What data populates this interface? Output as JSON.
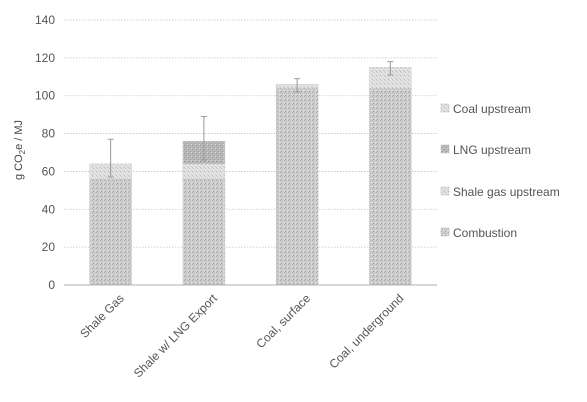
{
  "chart_data": {
    "type": "bar",
    "stacked": true,
    "categories": [
      "Shale Gas",
      "Shale w/ LNG Export",
      "Coal, surface",
      "Coal, underground"
    ],
    "ylabel_parts": [
      "g CO",
      "2",
      "e / MJ"
    ],
    "ylim": [
      0,
      140
    ],
    "yticks": [
      0,
      20,
      40,
      60,
      80,
      100,
      120,
      140
    ],
    "grid": true,
    "legend_position": "right",
    "series": [
      {
        "name": "Combustion",
        "color": "#c9c9c9",
        "values": [
          56,
          56,
          104,
          104
        ]
      },
      {
        "name": "Shale gas upstream",
        "color": "#d4d4d4",
        "values": [
          8,
          8,
          0,
          0
        ]
      },
      {
        "name": "LNG upstream",
        "color": "#bdbdbd",
        "values": [
          0,
          12,
          0,
          0
        ]
      },
      {
        "name": "Coal upstream",
        "color": "#dddddd",
        "values": [
          0,
          0,
          2,
          11
        ]
      }
    ],
    "error_bars": [
      {
        "low": 57,
        "high": 77
      },
      {
        "low": 66,
        "high": 89
      },
      {
        "low": 102,
        "high": 109
      },
      {
        "low": 111,
        "high": 118
      }
    ],
    "legend_order": [
      "Coal upstream",
      "LNG upstream",
      "Shale gas upstream",
      "Combustion"
    ]
  }
}
